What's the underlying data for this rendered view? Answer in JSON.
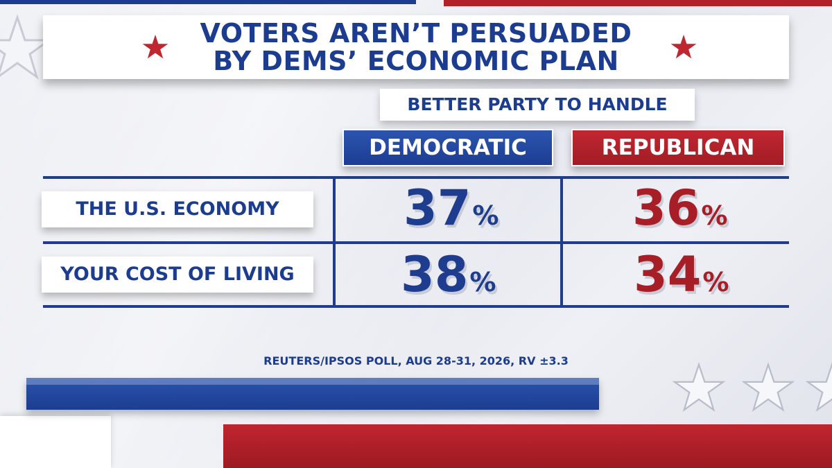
{
  "title": {
    "line1": "VOTERS AREN’T PERSUADED",
    "line2": "BY DEMS’ ECONOMIC PLAN"
  },
  "subheading": "BETTER PARTY TO HANDLE",
  "colors": {
    "democratic": "#1e3d8f",
    "republican": "#a71e27",
    "background": "#eceef3"
  },
  "icons": [
    "star-icon"
  ],
  "chart_data": {
    "type": "table",
    "title": "VOTERS AREN’T PERSUADED BY DEMS’ ECONOMIC PLAN",
    "subtitle": "BETTER PARTY TO HANDLE",
    "columns": [
      "DEMOCRATIC",
      "REPUBLICAN"
    ],
    "rows": [
      {
        "label": "THE U.S. ECONOMY",
        "values": [
          "37",
          "36"
        ]
      },
      {
        "label": "YOUR COST OF LIVING",
        "values": [
          "38",
          "34"
        ]
      }
    ],
    "unit": "%",
    "source": "REUTERS/IPSOS POLL, AUG 28-31, 2026, RV ±3.3"
  }
}
